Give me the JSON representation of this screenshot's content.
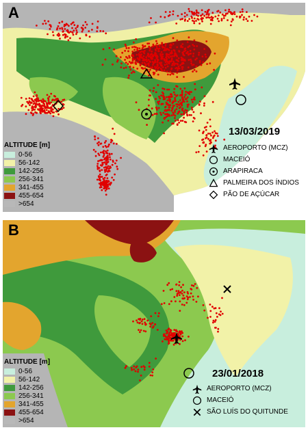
{
  "panels": [
    {
      "letter": "A",
      "date": "13/03/2019",
      "altitude_legend": {
        "title": "ALTITUDE [m]",
        "classes": [
          {
            "label": "0-56",
            "color": "#c8eedd"
          },
          {
            "label": "56-142",
            "color": "#f2f2a8"
          },
          {
            "label": "142-256",
            "color": "#3f9a3c"
          },
          {
            "label": "256-341",
            "color": "#8cc94f"
          },
          {
            "label": "341-455",
            "color": "#e3a52e"
          },
          {
            "label": "455-654",
            "color": "#8b1212"
          },
          {
            "label": ">654",
            "color": "#b8b8b8"
          }
        ]
      },
      "symbol_legend": [
        {
          "icon": "airplane-icon",
          "label": "AEROPORTO (MCZ)"
        },
        {
          "icon": "circle-icon",
          "label": "MACEIÓ"
        },
        {
          "icon": "dotted-circle-icon",
          "label": "ARAPIRACA"
        },
        {
          "icon": "triangle-icon",
          "label": "PALMEIRA DOS ÍNDIOS"
        },
        {
          "icon": "diamond-icon",
          "label": "PÃO DE AÇÚCAR"
        }
      ],
      "marker_color": "#e00000"
    },
    {
      "letter": "B",
      "date": "23/01/2018",
      "altitude_legend": {
        "title": "ALTITUDE [m]",
        "classes": [
          {
            "label": "0-56",
            "color": "#c8eedd"
          },
          {
            "label": "56-142",
            "color": "#f2f2a8"
          },
          {
            "label": "142-256",
            "color": "#3f9a3c"
          },
          {
            "label": "256-341",
            "color": "#8cc94f"
          },
          {
            "label": "341-455",
            "color": "#e3a52e"
          },
          {
            "label": "455-654",
            "color": "#8b1212"
          },
          {
            "label": ">654",
            "color": "#b8b8b8"
          }
        ]
      },
      "symbol_legend": [
        {
          "icon": "airplane-icon",
          "label": "AEROPORTO (MCZ)"
        },
        {
          "icon": "circle-icon",
          "label": "MACEIÓ"
        },
        {
          "icon": "cross-icon",
          "label": "SÃO LUÍS DO QUITUNDE"
        }
      ],
      "marker_color": "#e00000"
    }
  ]
}
